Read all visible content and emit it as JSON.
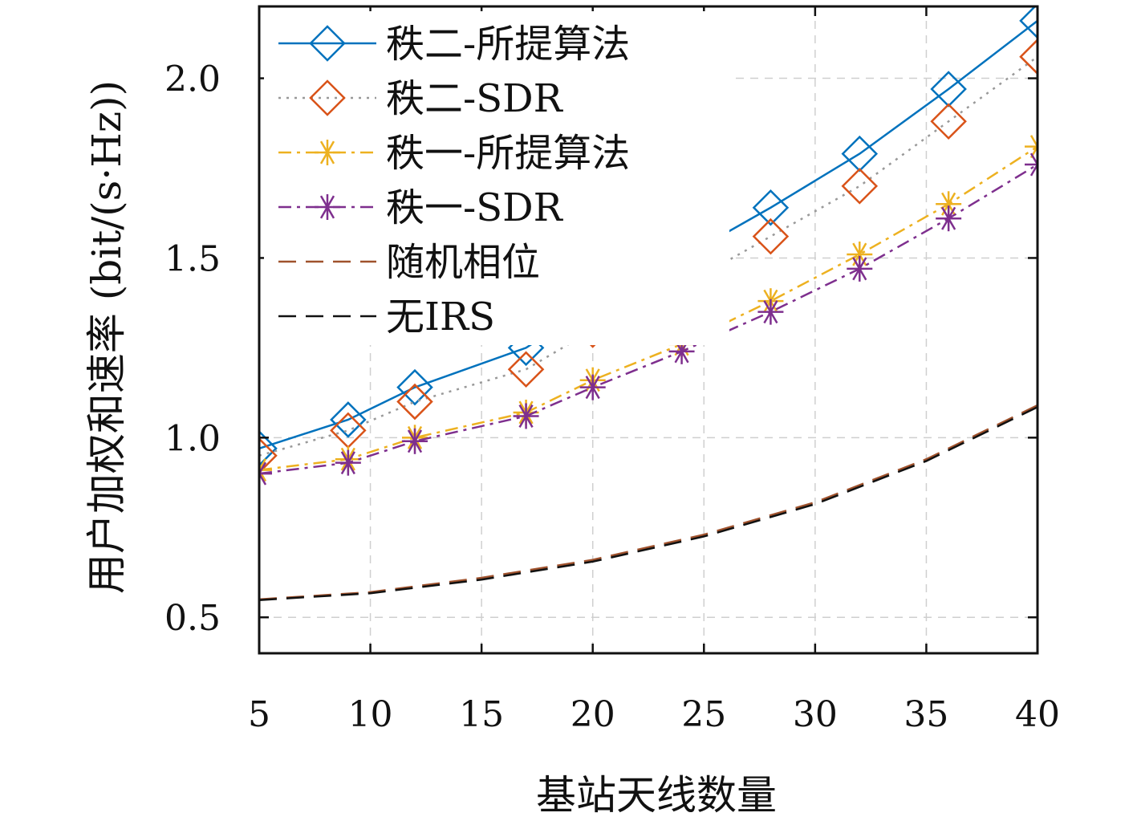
{
  "chart_data": {
    "type": "line",
    "title": "",
    "xlabel": "基站天线数量",
    "ylabel": "用户加权和速率 (bit/(s·Hz))",
    "xlim": [
      5,
      40
    ],
    "ylim": [
      0.4,
      2.2
    ],
    "xticks": [
      5,
      10,
      15,
      20,
      25,
      30,
      35,
      40
    ],
    "yticks": [
      0.5,
      1.0,
      1.5,
      2.0
    ],
    "ytick_labels": [
      "0.5",
      "1.0",
      "1.5",
      "2.0"
    ],
    "grid": true,
    "legend_position": "top-left",
    "series": [
      {
        "name": "秩二-所提算法",
        "color": "#0072bd",
        "line": "solid",
        "marker": "diamond",
        "x": [
          5,
          9,
          12,
          17,
          20,
          24,
          28,
          32,
          36,
          40
        ],
        "y": [
          0.97,
          1.05,
          1.14,
          1.25,
          1.37,
          1.5,
          1.64,
          1.79,
          1.97,
          2.16
        ]
      },
      {
        "name": "秩二-SDR",
        "color": "#d95319",
        "line": "dotted",
        "line_color": "#999999",
        "marker": "diamond",
        "x": [
          5,
          9,
          12,
          17,
          20,
          24,
          28,
          32,
          36,
          40
        ],
        "y": [
          0.95,
          1.02,
          1.1,
          1.19,
          1.3,
          1.42,
          1.56,
          1.7,
          1.88,
          2.06
        ]
      },
      {
        "name": "秩一-所提算法",
        "color": "#edb120",
        "line": "dashdot",
        "marker": "asterisk",
        "x": [
          5,
          9,
          12,
          17,
          20,
          24,
          28,
          32,
          36,
          40
        ],
        "y": [
          0.91,
          0.94,
          1.0,
          1.07,
          1.16,
          1.26,
          1.38,
          1.51,
          1.65,
          1.81
        ]
      },
      {
        "name": "秩一-SDR",
        "color": "#7e2f8e",
        "line": "dashdot",
        "marker": "asterisk",
        "x": [
          5,
          9,
          12,
          17,
          20,
          24,
          28,
          32,
          36,
          40
        ],
        "y": [
          0.9,
          0.93,
          0.99,
          1.06,
          1.14,
          1.24,
          1.35,
          1.47,
          1.61,
          1.76
        ]
      },
      {
        "name": "随机相位",
        "color": "#a0522d",
        "line": "dashed",
        "marker": "none",
        "x": [
          5,
          10,
          15,
          20,
          25,
          30,
          35,
          40
        ],
        "y": [
          0.55,
          0.57,
          0.61,
          0.66,
          0.73,
          0.82,
          0.94,
          1.09
        ]
      },
      {
        "name": "无IRS",
        "color": "#111111",
        "line": "dashed",
        "marker": "none",
        "x": [
          5,
          10,
          15,
          20,
          25,
          30,
          35,
          40
        ],
        "y": [
          0.548,
          0.567,
          0.605,
          0.655,
          0.725,
          0.815,
          0.935,
          1.085
        ]
      }
    ]
  }
}
